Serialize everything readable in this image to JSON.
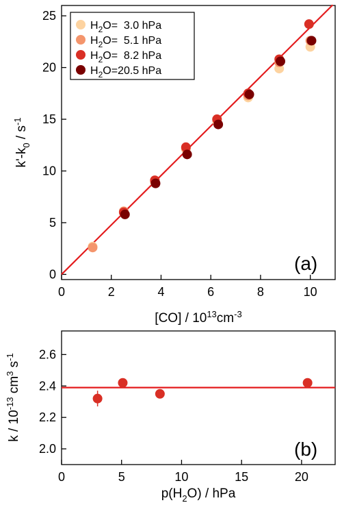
{
  "chart_data": [
    {
      "type": "scatter",
      "panel_label": "(a)",
      "xlabel": {
        "main": "[CO] / 10",
        "sup": "13",
        "unit": "cm",
        "unit_sup": "-3"
      },
      "ylabel": {
        "main": "k'-k",
        "sub": "0",
        "unit": " / s",
        "unit_sup": "-1"
      },
      "xlim": [
        0,
        11
      ],
      "ylim": [
        -0.5,
        26
      ],
      "xticks": [
        "0",
        "2",
        "4",
        "6",
        "8",
        "10"
      ],
      "yticks": [
        "0",
        "5",
        "10",
        "15",
        "20",
        "25"
      ],
      "legend_position": "top-left",
      "series": [
        {
          "name": {
            "pre": "H",
            "sub": "2",
            "post": "O=  3.0 hPa"
          },
          "color": "#fdd3a0",
          "points": [
            [
              1.25,
              2.7
            ],
            [
              2.5,
              6.0
            ],
            [
              3.75,
              8.9
            ],
            [
              5.0,
              12.1
            ],
            [
              6.25,
              14.8
            ],
            [
              7.5,
              17.1
            ],
            [
              8.75,
              19.9
            ],
            [
              10.0,
              22.0
            ]
          ]
        },
        {
          "name": {
            "pre": "H",
            "sub": "2",
            "post": "O=  5.1 hPa"
          },
          "color": "#f4956c",
          "points": [
            [
              1.25,
              2.6
            ],
            [
              2.5,
              6.1
            ],
            [
              3.75,
              9.0
            ],
            [
              5.0,
              12.2
            ],
            [
              6.25,
              15.0
            ],
            [
              7.5,
              17.3
            ],
            [
              8.75,
              20.5
            ],
            [
              10.0,
              22.6
            ]
          ]
        },
        {
          "name": {
            "pre": "H",
            "sub": "2",
            "post": "O=  8.2 hPa"
          },
          "color": "#d92f25",
          "points": [
            [
              2.5,
              6.0
            ],
            [
              3.75,
              9.1
            ],
            [
              5.0,
              12.3
            ],
            [
              6.25,
              15.0
            ],
            [
              7.5,
              17.5
            ],
            [
              8.75,
              20.8
            ],
            [
              9.95,
              24.2
            ]
          ]
        },
        {
          "name": {
            "pre": "H",
            "sub": "2",
            "post": "O=20.5 hPa"
          },
          "color": "#7a0000",
          "points": [
            [
              2.55,
              5.8
            ],
            [
              3.78,
              8.8
            ],
            [
              5.05,
              11.6
            ],
            [
              6.3,
              14.5
            ],
            [
              7.55,
              17.4
            ],
            [
              8.8,
              20.6
            ],
            [
              10.05,
              22.6
            ]
          ]
        }
      ],
      "fit_line": {
        "color": "#e31a1c",
        "slope": 2.39,
        "intercept": 0.0,
        "x_range": [
          0,
          10.9
        ]
      }
    },
    {
      "type": "scatter",
      "panel_label": "(b)",
      "xlabel": {
        "main": "p(H",
        "sub": "2",
        "post": "O) / hPa"
      },
      "ylabel": {
        "main": "k / 10",
        "sup": "-13",
        "unit": " cm",
        "unit_sup": "3",
        "unit2": " s",
        "unit2_sup": "-1"
      },
      "xlim": [
        0,
        22.8
      ],
      "ylim": [
        1.9,
        2.75
      ],
      "xticks": [
        "0",
        "5",
        "10",
        "15",
        "20"
      ],
      "yticks": [
        "2.0",
        "2.2",
        "2.4",
        "2.6"
      ],
      "series": [
        {
          "name": "",
          "color": "#d92f25",
          "points": [
            [
              3.0,
              2.32
            ],
            [
              5.1,
              2.42
            ],
            [
              8.2,
              2.35
            ],
            [
              20.5,
              2.42
            ]
          ],
          "errors": [
            0.05,
            0.015,
            0.015,
            0.015
          ]
        }
      ],
      "fit_line": {
        "color": "#e31a1c",
        "y": 2.39,
        "x_range": [
          0,
          22.8
        ]
      }
    }
  ]
}
